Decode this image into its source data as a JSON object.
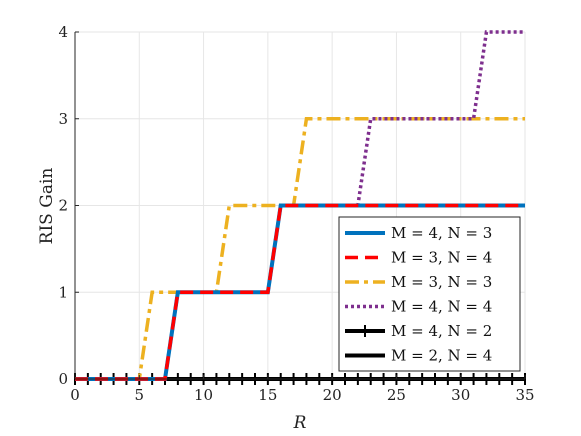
{
  "chart_data": {
    "type": "line",
    "title": "",
    "xlabel": "R",
    "ylabel": "RIS Gain",
    "xlim": [
      0,
      35
    ],
    "ylim": [
      0,
      4
    ],
    "xticks": [
      0,
      5,
      10,
      15,
      20,
      25,
      30,
      35
    ],
    "yticks": [
      0,
      1,
      2,
      3,
      4
    ],
    "grid": true,
    "legend_position": "bottom-right",
    "series": [
      {
        "name": "M = 4, N = 3",
        "color": "#0072BD",
        "style": "solid",
        "x": [
          0,
          7,
          8,
          15,
          16,
          35
        ],
        "y": [
          0,
          0,
          1,
          1,
          2,
          2
        ]
      },
      {
        "name": "M = 3, N = 4",
        "color": "#FF0000",
        "style": "dashed",
        "x": [
          0,
          7,
          8,
          15,
          16,
          35
        ],
        "y": [
          0,
          0,
          1,
          1,
          2,
          2
        ]
      },
      {
        "name": "M = 3, N = 3",
        "color": "#EDB120",
        "style": "dashdot",
        "x": [
          0,
          5,
          6,
          11,
          12,
          17,
          18,
          35
        ],
        "y": [
          0,
          0,
          1,
          1,
          2,
          2,
          3,
          3
        ]
      },
      {
        "name": "M = 4, N = 4",
        "color": "#7E2F8E",
        "style": "dotted",
        "x": [
          0,
          7,
          8,
          15,
          16,
          22,
          23,
          31,
          32,
          35
        ],
        "y": [
          0,
          0,
          1,
          1,
          2,
          2,
          3,
          3,
          4,
          4
        ]
      },
      {
        "name": "M = 4, N = 2",
        "color": "#000000",
        "style": "solid-plus",
        "x": [
          0,
          35
        ],
        "y": [
          0,
          0
        ]
      },
      {
        "name": "M = 2, N = 4",
        "color": "#000000",
        "style": "solid",
        "x": [
          0,
          35
        ],
        "y": [
          0,
          0
        ]
      }
    ]
  }
}
